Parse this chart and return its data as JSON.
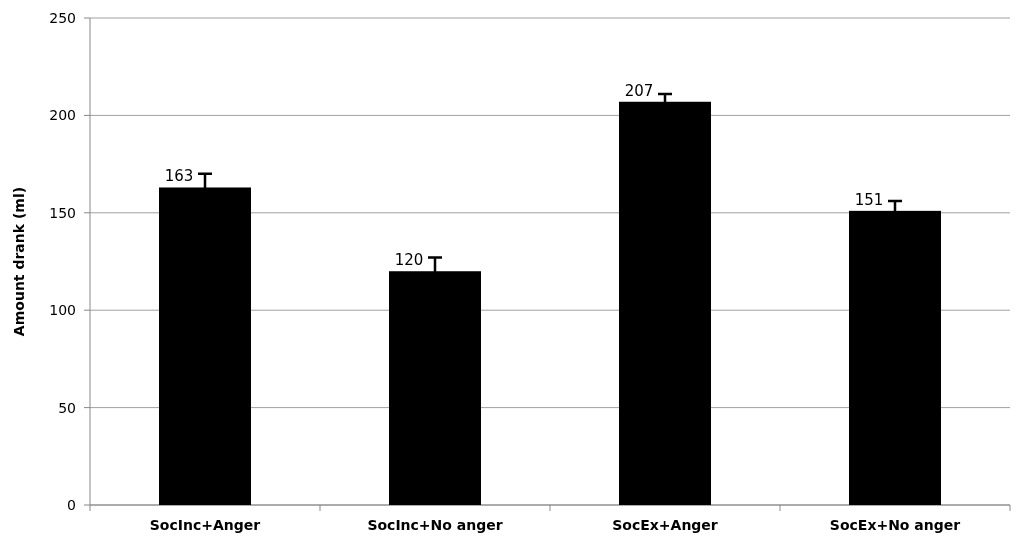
{
  "chart_data": {
    "type": "bar",
    "ylabel": "Amount drank (ml)",
    "categories": [
      "SocInc+Anger",
      "SocInc+No anger",
      "SocEx+Anger",
      "SocEx+No anger"
    ],
    "values": [
      163,
      120,
      207,
      151
    ],
    "errors": [
      7,
      7,
      4,
      5
    ],
    "color": "#000000",
    "ylim": [
      0,
      250
    ],
    "yticks": [
      0,
      50,
      100,
      150,
      200,
      250
    ],
    "grid": "y",
    "data_labels": true
  }
}
